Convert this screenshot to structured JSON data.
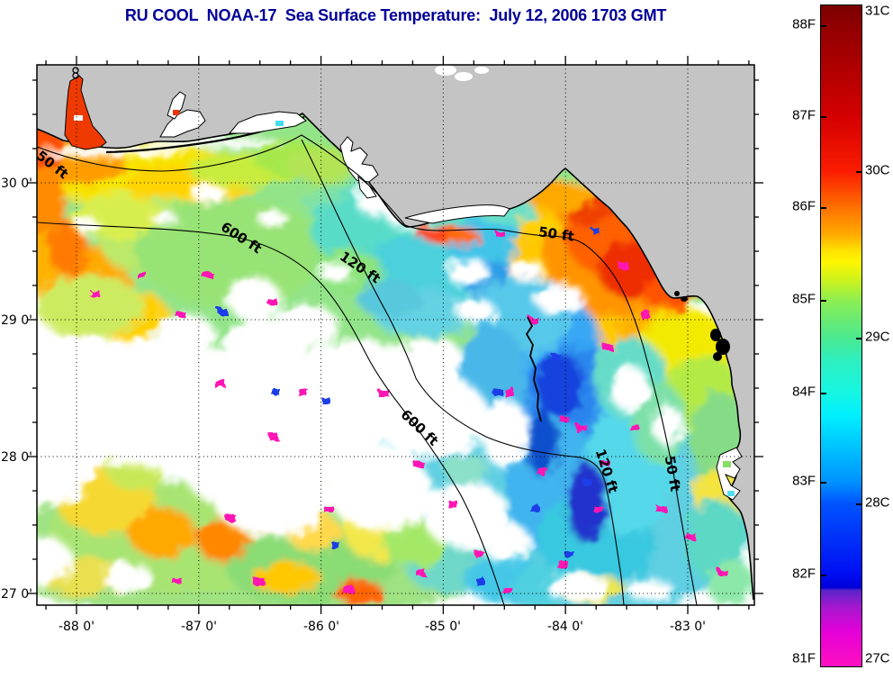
{
  "title": {
    "text": "RU COOL  NOAA-17  Sea Surface Temperature:  July 12, 2006 1703 GMT"
  },
  "map": {
    "x_axis_labels": [
      "-88 0'",
      "-87 0'",
      "-86 0'",
      "-85 0'",
      "-84 0'",
      "-83 0'"
    ],
    "y_axis_labels": [
      "30 0'",
      "29 0'",
      "28 0'",
      "27 0'"
    ],
    "contour_labels": [
      "50 ft",
      "600 ft",
      "120 ft",
      "50 ft",
      "600 ft",
      "120 ft",
      "50 ft"
    ],
    "colors": {
      "land": "#c4c4c4",
      "title": "#000099",
      "cold_extreme": "#ff10c0",
      "hot_extreme": "#7a0000"
    }
  },
  "colorbar": {
    "fahrenheit_labels": [
      "88F",
      "87F",
      "86F",
      "85F",
      "84F",
      "83F",
      "82F",
      "81F"
    ],
    "celsius_labels": [
      "31C",
      "30C",
      "29C",
      "28C",
      "27C"
    ]
  }
}
